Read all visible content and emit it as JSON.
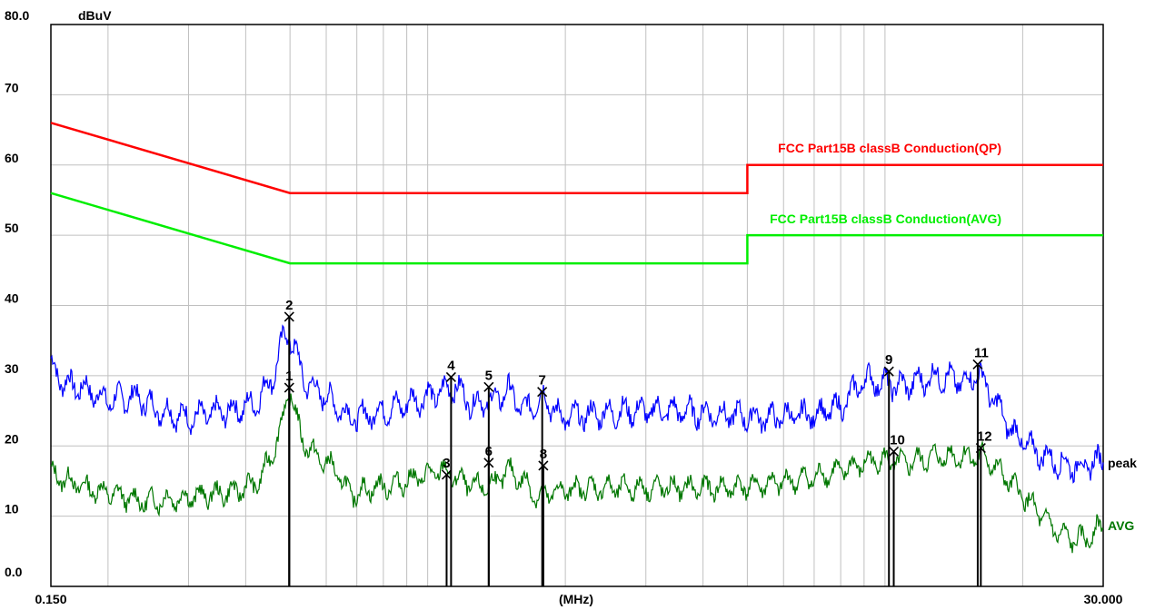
{
  "chart_data": {
    "type": "line",
    "ylabel": "dBuV",
    "xlabel": "(MHz)",
    "x_scale": "log",
    "xlim": [
      0.15,
      30.0
    ],
    "ylim": [
      0,
      80
    ],
    "y_ticks": [
      {
        "value": 80,
        "label": "80.0"
      },
      {
        "value": 70,
        "label": "70"
      },
      {
        "value": 60,
        "label": "60"
      },
      {
        "value": 50,
        "label": "50"
      },
      {
        "value": 40,
        "label": "40"
      },
      {
        "value": 30,
        "label": "30"
      },
      {
        "value": 20,
        "label": "20"
      },
      {
        "value": 10,
        "label": "10"
      },
      {
        "value": 0,
        "label": "0.0"
      }
    ],
    "x_tick_labels": [
      {
        "value": 0.15,
        "label": "0.150"
      },
      {
        "value": 30.0,
        "label": "30.000"
      }
    ],
    "grid": true,
    "limits": [
      {
        "name": "FCC  Part15B classB Conduction(QP)",
        "color": "#ff0000",
        "points": [
          [
            0.15,
            66
          ],
          [
            0.5,
            56
          ],
          [
            5.0,
            56
          ],
          [
            5.0,
            60
          ],
          [
            30.0,
            60
          ]
        ]
      },
      {
        "name": "FCC  Part15B classB Conduction(AVG)",
        "color": "#00ee00",
        "points": [
          [
            0.15,
            56
          ],
          [
            0.5,
            46
          ],
          [
            5.0,
            46
          ],
          [
            5.0,
            50
          ],
          [
            30.0,
            50
          ]
        ]
      }
    ],
    "series": [
      {
        "name": "peak",
        "color": "#0000ff",
        "points": [
          [
            0.15,
            31.5
          ],
          [
            0.16,
            29
          ],
          [
            0.18,
            28
          ],
          [
            0.2,
            26.5
          ],
          [
            0.23,
            27
          ],
          [
            0.26,
            25
          ],
          [
            0.3,
            24
          ],
          [
            0.33,
            24.5
          ],
          [
            0.37,
            25
          ],
          [
            0.42,
            26
          ],
          [
            0.46,
            30
          ],
          [
            0.49,
            36.5
          ],
          [
            0.51,
            34
          ],
          [
            0.54,
            29
          ],
          [
            0.6,
            27
          ],
          [
            0.68,
            24
          ],
          [
            0.75,
            24.5
          ],
          [
            0.85,
            25.5
          ],
          [
            1.0,
            27
          ],
          [
            1.15,
            28.5
          ],
          [
            1.25,
            26
          ],
          [
            1.4,
            26.5
          ],
          [
            1.5,
            28
          ],
          [
            1.62,
            25
          ],
          [
            1.8,
            27
          ],
          [
            1.95,
            24
          ],
          [
            2.3,
            24.5
          ],
          [
            2.8,
            25
          ],
          [
            3.5,
            25
          ],
          [
            4.3,
            24.5
          ],
          [
            5.5,
            24
          ],
          [
            7.0,
            24.5
          ],
          [
            8.0,
            25.5
          ],
          [
            9.0,
            29.5
          ],
          [
            9.8,
            29
          ],
          [
            11.0,
            28.5
          ],
          [
            13.0,
            30
          ],
          [
            15.0,
            29
          ],
          [
            16.0,
            30.5
          ],
          [
            17.5,
            26
          ],
          [
            19.0,
            22
          ],
          [
            21.0,
            19.5
          ],
          [
            24.0,
            17.5
          ],
          [
            27.0,
            17
          ],
          [
            30.0,
            18
          ]
        ]
      },
      {
        "name": "AVG",
        "color": "#007700",
        "points": [
          [
            0.15,
            16
          ],
          [
            0.18,
            14
          ],
          [
            0.21,
            13
          ],
          [
            0.24,
            12
          ],
          [
            0.28,
            12.5
          ],
          [
            0.33,
            13
          ],
          [
            0.38,
            13.5
          ],
          [
            0.43,
            15
          ],
          [
            0.47,
            21
          ],
          [
            0.5,
            28
          ],
          [
            0.53,
            21
          ],
          [
            0.57,
            18.5
          ],
          [
            0.62,
            17
          ],
          [
            0.68,
            13
          ],
          [
            0.75,
            14
          ],
          [
            0.85,
            14.5
          ],
          [
            0.95,
            15.5
          ],
          [
            1.08,
            16.5
          ],
          [
            1.18,
            15
          ],
          [
            1.3,
            14
          ],
          [
            1.42,
            15
          ],
          [
            1.5,
            16.5
          ],
          [
            1.62,
            15
          ],
          [
            1.75,
            12.5
          ],
          [
            1.9,
            13.5
          ],
          [
            2.2,
            14
          ],
          [
            2.8,
            14
          ],
          [
            3.5,
            14
          ],
          [
            4.5,
            14
          ],
          [
            5.5,
            14.5
          ],
          [
            7.0,
            15.5
          ],
          [
            8.5,
            17
          ],
          [
            9.5,
            18
          ],
          [
            11.0,
            17.5
          ],
          [
            13.0,
            18.5
          ],
          [
            15.0,
            18.5
          ],
          [
            16.5,
            18.5
          ],
          [
            18.0,
            16
          ],
          [
            20.0,
            13
          ],
          [
            22.0,
            10
          ],
          [
            24.0,
            7.5
          ],
          [
            26.0,
            6.5
          ],
          [
            28.0,
            7
          ],
          [
            30.0,
            9
          ]
        ]
      }
    ],
    "markers": [
      {
        "label": "1",
        "x": 0.498,
        "y": 28.3
      },
      {
        "label": "2",
        "x": 0.498,
        "y": 38.4
      },
      {
        "label": "3",
        "x": 1.1,
        "y": 15.9
      },
      {
        "label": "4",
        "x": 1.125,
        "y": 29.8
      },
      {
        "label": "5",
        "x": 1.36,
        "y": 28.4
      },
      {
        "label": "6",
        "x": 1.36,
        "y": 17.6
      },
      {
        "label": "7",
        "x": 1.78,
        "y": 27.7
      },
      {
        "label": "8",
        "x": 1.79,
        "y": 17.2
      },
      {
        "label": "9",
        "x": 10.2,
        "y": 30.6
      },
      {
        "label": "10",
        "x": 10.45,
        "y": 19.2
      },
      {
        "label": "11",
        "x": 15.95,
        "y": 31.6
      },
      {
        "label": "12",
        "x": 16.2,
        "y": 19.7
      }
    ],
    "annotations": [
      {
        "text": "FCC  Part15B classB Conduction(QP)",
        "color": "#ff0000"
      },
      {
        "text": "FCC  Part15B classB Conduction(AVG)",
        "color": "#00ee00"
      }
    ]
  }
}
